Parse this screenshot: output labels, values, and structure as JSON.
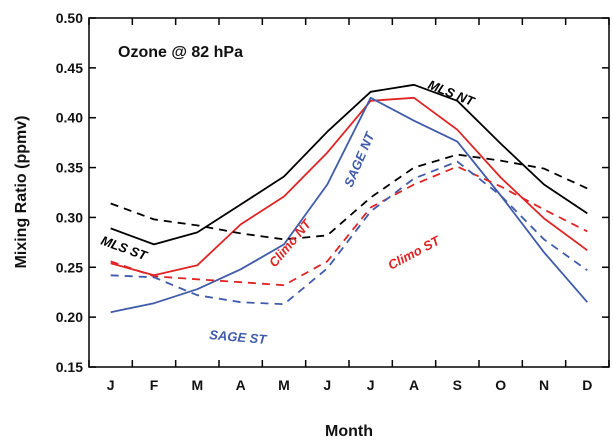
{
  "chart_data": {
    "type": "line",
    "title": "Ozone @ 82 hPa",
    "xlabel": "Month",
    "ylabel": "Mixing Ratio (ppmv)",
    "ylim": [
      0.15,
      0.5
    ],
    "yticks": [
      "0.15",
      "0.20",
      "0.25",
      "0.30",
      "0.35",
      "0.40",
      "0.45",
      "0.50"
    ],
    "categories": [
      "J",
      "F",
      "M",
      "A",
      "M",
      "J",
      "J",
      "A",
      "S",
      "O",
      "N",
      "D"
    ],
    "grid": false,
    "legend": "none",
    "series": [
      {
        "name": "MLS NT",
        "color": "#000000",
        "dash": "solid",
        "values": [
          0.289,
          0.273,
          0.285,
          0.313,
          0.341,
          0.386,
          0.426,
          0.433,
          0.417,
          0.374,
          0.333,
          0.304
        ]
      },
      {
        "name": "Climo NT",
        "color": "#e02424",
        "dash": "solid",
        "values": [
          0.254,
          0.242,
          0.252,
          0.293,
          0.321,
          0.365,
          0.417,
          0.42,
          0.388,
          0.34,
          0.299,
          0.267
        ]
      },
      {
        "name": "SAGE NT",
        "color": "#3f5ba9",
        "dash": "solid",
        "values": [
          0.205,
          0.214,
          0.228,
          0.248,
          0.273,
          0.333,
          0.42,
          0.397,
          0.376,
          0.322,
          0.265,
          0.215
        ]
      },
      {
        "name": "MLS ST",
        "color": "#000000",
        "dash": "dashed",
        "values": [
          0.314,
          0.298,
          0.292,
          0.284,
          0.278,
          0.282,
          0.32,
          0.35,
          0.363,
          0.357,
          0.349,
          0.329
        ]
      },
      {
        "name": "Climo ST",
        "color": "#e02424",
        "dash": "dashed",
        "values": [
          0.256,
          0.241,
          0.238,
          0.235,
          0.232,
          0.256,
          0.31,
          0.333,
          0.351,
          0.331,
          0.308,
          0.286
        ]
      },
      {
        "name": "SAGE ST",
        "color": "#3f5ba9",
        "dash": "dashed",
        "values": [
          0.242,
          0.24,
          0.222,
          0.215,
          0.213,
          0.249,
          0.306,
          0.339,
          0.356,
          0.322,
          0.278,
          0.247
        ]
      }
    ]
  }
}
